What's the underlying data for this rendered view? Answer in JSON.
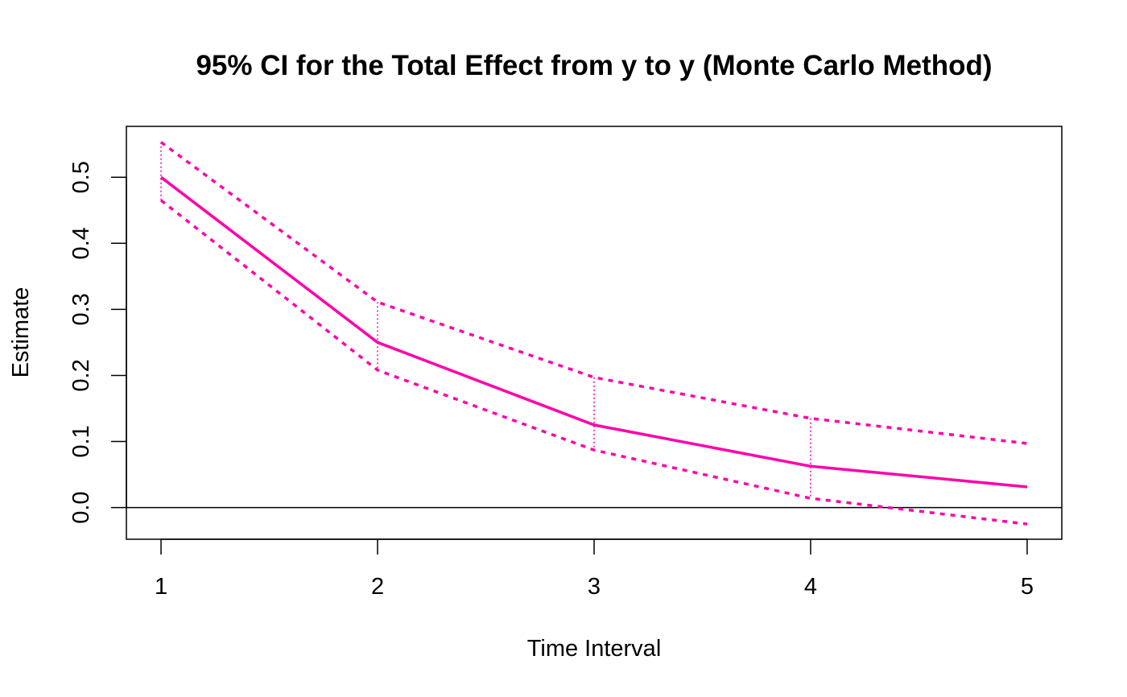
{
  "chart_data": {
    "type": "line",
    "title": "95% CI for the Total Effect from y to y (Monte Carlo Method)",
    "xlabel": "Time Interval",
    "ylabel": "Estimate",
    "x": [
      1,
      2,
      3,
      4,
      5
    ],
    "xlim": [
      0.84,
      5.16
    ],
    "ylim": [
      -0.048,
      0.577
    ],
    "x_ticks": [
      "1",
      "2",
      "3",
      "4",
      "5"
    ],
    "y_ticks": [
      "0.0",
      "0.1",
      "0.2",
      "0.3",
      "0.4",
      "0.5"
    ],
    "series": [
      {
        "role": "estimate",
        "values": [
          0.5,
          0.25,
          0.125,
          0.0625,
          0.03125
        ]
      },
      {
        "role": "upper",
        "values": [
          0.553,
          0.311,
          0.197,
          0.135,
          0.097
        ]
      },
      {
        "role": "lower",
        "values": [
          0.465,
          0.208,
          0.087,
          0.014,
          -0.025
        ]
      }
    ],
    "reference_line_y": 0,
    "grid": false,
    "legend": "none",
    "color": "#FF00AA"
  }
}
